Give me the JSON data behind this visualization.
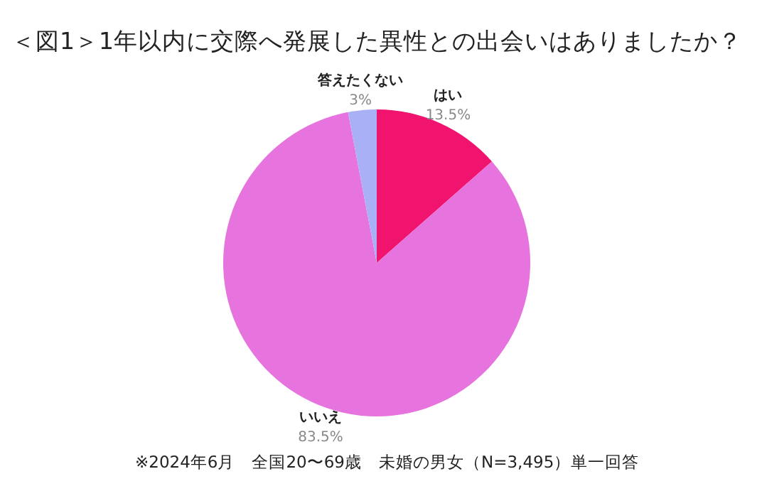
{
  "chart_data": {
    "type": "pie",
    "title": "＜図1＞1年以内に交際へ発展した異性との出会いはありましたか？",
    "categories": [
      "はい",
      "いいえ",
      "答えたくない"
    ],
    "values": [
      13.5,
      83.5,
      3
    ],
    "colors": [
      "#f0146e",
      "#e673de",
      "#aab0f5"
    ],
    "value_labels": [
      "13.5%",
      "83.5%",
      "3%"
    ],
    "legend": false,
    "annotations": [
      "※2024年6月　全国20〜69歳　未婚の男女（N=3,495）単一回答"
    ]
  }
}
